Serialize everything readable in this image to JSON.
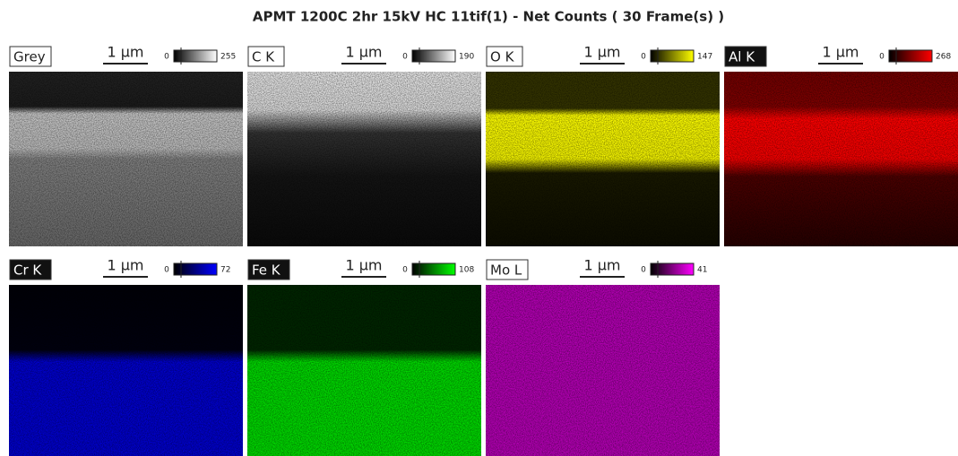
{
  "title": "APMT 1200C 2hr 15kV HC 11tif(1) - Net Counts ( 30 Frame(s) )",
  "panels": [
    {
      "label": "Grey",
      "scale": "1 µm",
      "min": "0",
      "max": "255",
      "color": "#ffffff"
    },
    {
      "label": "C K",
      "scale": "1 µm",
      "min": "0",
      "max": "190",
      "color": "#ffffff"
    },
    {
      "label": "O K",
      "scale": "1 µm",
      "min": "0",
      "max": "147",
      "color": "#ffff00"
    },
    {
      "label": "Al K",
      "scale": "1 µm",
      "min": "0",
      "max": "268",
      "color": "#ff0000"
    },
    {
      "label": "Cr K",
      "scale": "1 µm",
      "min": "0",
      "max": "72",
      "color": "#0000ff"
    },
    {
      "label": "Fe K",
      "scale": "1 µm",
      "min": "0",
      "max": "108",
      "color": "#00ff00"
    },
    {
      "label": "Mo L",
      "scale": "1 µm",
      "min": "0",
      "max": "41",
      "color": "#ff00ff"
    }
  ]
}
